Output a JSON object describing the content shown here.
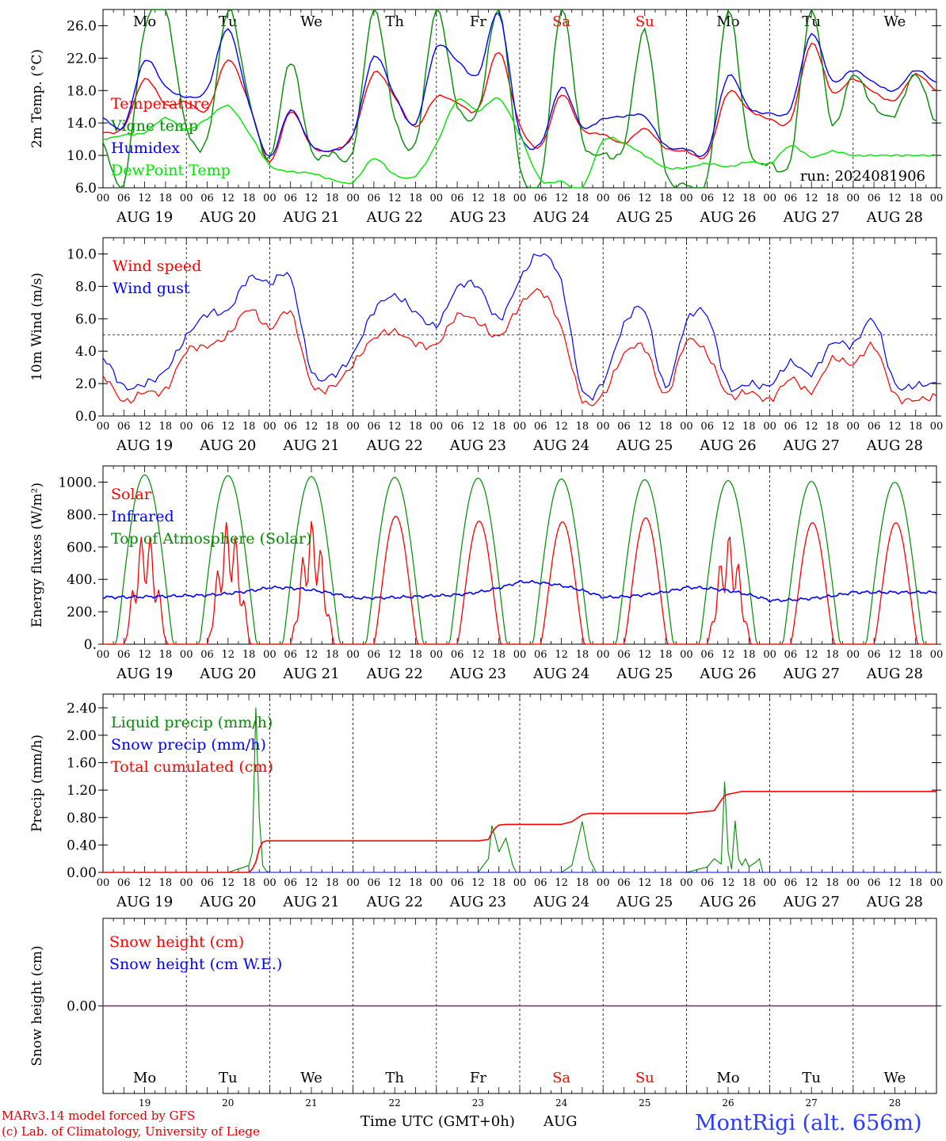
{
  "run_label": "run: 2024081906",
  "footer": {
    "credit_line1": "MARv3.14 model forced by GFS",
    "credit_line2": "(c) Lab. of Climatology, University of Liege",
    "xlabel": "Time UTC (GMT+0h)",
    "month": "AUG",
    "station": "MontRigi (alt. 656m)"
  },
  "colors": {
    "red": "#ff0000",
    "green": "#008c00",
    "blue": "#0000ff",
    "light_green": "#00e600",
    "purple": "#7a1f8f"
  },
  "days": {
    "names": [
      "Mo",
      "Tu",
      "We",
      "Th",
      "Fr",
      "Sa",
      "Su",
      "Mo",
      "Tu",
      "We"
    ],
    "weekend": [
      false,
      false,
      false,
      false,
      false,
      true,
      true,
      false,
      false,
      false
    ],
    "dates": [
      "AUG 19",
      "AUG 20",
      "AUG 21",
      "AUG 22",
      "AUG 23",
      "AUG 24",
      "AUG 25",
      "AUG 26",
      "AUG 27",
      "AUG 28"
    ],
    "numbers": [
      "19",
      "20",
      "21",
      "22",
      "23",
      "24",
      "25",
      "26",
      "27",
      "28"
    ],
    "hour_ticks": [
      "00",
      "06",
      "12",
      "18"
    ],
    "end_tick": "00"
  },
  "chart_data": [
    {
      "type": "line",
      "ylabel": "2m Temp. (°C)",
      "ylim": [
        6,
        28
      ],
      "yticks": [
        "6.0",
        "10.0",
        "14.0",
        "18.0",
        "22.0",
        "26.0"
      ],
      "x_unit": "hours since 00 UTC AUG 19",
      "x": [
        0,
        6,
        12,
        18,
        24,
        30,
        36,
        42,
        48,
        54,
        60,
        66,
        72,
        78,
        84,
        90,
        96,
        102,
        108,
        114,
        120,
        126,
        132,
        138,
        144,
        150,
        156,
        162,
        168,
        174,
        180,
        186,
        192,
        198,
        204,
        210,
        216,
        222,
        228,
        234,
        240
      ],
      "series": [
        {
          "name": "Temperature",
          "color": "red",
          "values": [
            12.8,
            13.5,
            19.4,
            16.3,
            16.6,
            15.6,
            21.8,
            16.5,
            9.2,
            15.4,
            11.2,
            10.6,
            12.6,
            20.2,
            17.2,
            13.5,
            17.2,
            16.5,
            15.7,
            22.8,
            13.8,
            11.1,
            17.5,
            13.2,
            12.6,
            11.5,
            13.3,
            10.9,
            10.5,
            10.1,
            17.8,
            15.6,
            14.5,
            14.4,
            23.8,
            17.8,
            19.4,
            17.8,
            16.8,
            20.0,
            18.0
          ]
        },
        {
          "name": "Vigne temp",
          "color": "green",
          "values": [
            11.3,
            6.5,
            25.6,
            27.9,
            13.5,
            12.0,
            28.0,
            17.0,
            9.6,
            21.6,
            10.5,
            10.3,
            10.6,
            28.0,
            14.6,
            11.5,
            28.0,
            16.2,
            15.5,
            28.0,
            8.8,
            6.5,
            28.0,
            12.0,
            10.2,
            11.2,
            25.4,
            8.0,
            6.5,
            7.0,
            28.0,
            11.0,
            9.0,
            9.5,
            28.0,
            13.8,
            20.0,
            16.0,
            15.0,
            20.0,
            14.0
          ]
        },
        {
          "name": "Humidex",
          "color": "blue",
          "values": [
            14.6,
            13.6,
            21.7,
            18.5,
            17.2,
            18.2,
            25.6,
            16.5,
            9.8,
            15.6,
            11.3,
            10.6,
            12.6,
            22.2,
            17.4,
            13.9,
            23.3,
            21.7,
            20.0,
            27.5,
            12.8,
            11.5,
            18.4,
            13.5,
            14.5,
            14.8,
            14.8,
            11.2,
            10.8,
            10.5,
            19.8,
            15.9,
            15.2,
            15.8,
            25.0,
            19.2,
            20.5,
            19.0,
            18.0,
            20.5,
            19.0
          ]
        },
        {
          "name": "DewPoint Temp",
          "color": "light_green",
          "values": [
            12.0,
            12.5,
            12.8,
            14.6,
            13.2,
            14.5,
            16.1,
            12.8,
            8.8,
            8.0,
            7.8,
            7.0,
            6.7,
            9.6,
            7.6,
            7.5,
            11.4,
            16.8,
            15.5,
            17.0,
            12.5,
            7.0,
            6.8,
            6.0,
            11.8,
            11.5,
            10.0,
            8.5,
            8.5,
            9.0,
            8.6,
            9.2,
            9.0,
            11.2,
            9.8,
            10.5,
            10.0,
            10.0,
            10.0,
            10.0,
            10.0
          ]
        }
      ]
    },
    {
      "type": "line",
      "ylabel": "10m Wind (m/s)",
      "ylim": [
        0,
        11
      ],
      "yticks": [
        "0.0",
        "2.0",
        "4.0",
        "6.0",
        "8.0",
        "10.0"
      ],
      "reference_line": 5.0,
      "x": [
        0,
        6,
        12,
        18,
        24,
        30,
        36,
        42,
        48,
        54,
        60,
        66,
        72,
        78,
        84,
        90,
        96,
        102,
        108,
        114,
        120,
        126,
        132,
        138,
        144,
        150,
        156,
        162,
        168,
        174,
        180,
        186,
        192,
        198,
        204,
        210,
        216,
        222,
        228,
        234,
        240
      ],
      "series": [
        {
          "name": "Wind speed",
          "color": "red",
          "values": [
            2.5,
            0.9,
            1.5,
            1.6,
            4.0,
            4.3,
            5.0,
            6.6,
            5.4,
            6.4,
            2.0,
            1.8,
            3.2,
            4.8,
            5.2,
            4.5,
            4.4,
            6.2,
            5.8,
            4.9,
            6.8,
            7.7,
            5.4,
            1.0,
            1.3,
            3.8,
            4.2,
            1.3,
            4.6,
            3.8,
            1.3,
            1.5,
            1.0,
            2.3,
            1.5,
            3.5,
            3.2,
            4.3,
            1.3,
            1.0,
            1.2
          ]
        },
        {
          "name": "Wind gust",
          "color": "blue",
          "values": [
            3.6,
            1.8,
            2.0,
            2.8,
            4.9,
            6.3,
            6.5,
            8.5,
            8.2,
            8.5,
            2.8,
            2.5,
            3.8,
            6.5,
            7.4,
            6.4,
            5.6,
            7.9,
            8.0,
            6.0,
            8.4,
            10.0,
            8.2,
            1.6,
            2.1,
            5.6,
            6.5,
            1.8,
            5.8,
            6.2,
            1.9,
            2.0,
            1.9,
            3.3,
            2.6,
            4.5,
            4.4,
            5.9,
            2.0,
            1.9,
            2.0
          ]
        }
      ]
    },
    {
      "type": "line",
      "ylabel": "Energy fluxes (W/m²)",
      "ylim": [
        0,
        1100
      ],
      "yticks": [
        "0.",
        "200.",
        "400.",
        "600.",
        "800.",
        "1000."
      ],
      "x_unit": "hours since 00 UTC AUG 19",
      "toa_peak_by_day": [
        1045,
        1040,
        1035,
        1030,
        1025,
        1020,
        1015,
        1010,
        1005,
        1000
      ],
      "solar_peak_by_day": [
        710,
        770,
        765,
        790,
        760,
        755,
        780,
        680,
        750,
        750
      ],
      "infrared_by_day": [
        290,
        300,
        350,
        285,
        300,
        385,
        290,
        350,
        270,
        320
      ],
      "series": [
        {
          "name": "Solar",
          "color": "red"
        },
        {
          "name": "Infrared",
          "color": "blue"
        },
        {
          "name": "Top of Atmosphere (Solar)",
          "color": "green"
        }
      ]
    },
    {
      "type": "line",
      "ylabel": "Precip (mm/h)",
      "ylim": [
        0,
        2.6
      ],
      "yticks": [
        "0.00",
        "0.40",
        "0.80",
        "1.20",
        "1.60",
        "2.00",
        "2.40"
      ],
      "x_unit": "hours since 00 UTC AUG 19",
      "series": [
        {
          "name": "Liquid precip (mm/h)",
          "color": "green",
          "x": [
            0,
            30,
            36,
            39,
            42,
            43,
            44,
            45,
            46,
            47,
            48,
            50,
            54,
            60,
            108,
            111,
            112,
            113,
            114,
            115,
            116,
            117,
            118,
            119,
            120,
            132,
            135,
            138,
            140,
            142,
            144,
            168,
            174,
            176,
            178,
            179,
            180,
            181,
            182,
            183,
            184,
            185,
            186,
            188,
            189,
            190,
            192,
            240
          ],
          "values": [
            0,
            0,
            0,
            0.05,
            0.1,
            0.3,
            2.4,
            0.8,
            0.1,
            0.02,
            0,
            0,
            0,
            0,
            0,
            0.2,
            0.68,
            0.5,
            0.3,
            0.4,
            0.5,
            0.3,
            0.1,
            0,
            0,
            0,
            0.1,
            0.74,
            0.2,
            0,
            0,
            0,
            0.08,
            0.2,
            0.12,
            1.32,
            0.3,
            0.05,
            0.75,
            0.2,
            0.1,
            0.2,
            0.08,
            0.15,
            0.2,
            0,
            0,
            0
          ]
        },
        {
          "name": "Snow precip (mm/h)",
          "color": "blue",
          "x": [
            0,
            240
          ],
          "values": [
            0,
            0
          ]
        },
        {
          "name": "Total cumulated (cm)",
          "color": "red",
          "x": [
            0,
            42,
            43,
            44,
            45,
            46,
            47,
            48,
            60,
            84,
            108,
            111,
            112,
            113,
            114,
            116,
            120,
            132,
            135,
            138,
            140,
            144,
            168,
            176,
            178,
            179,
            180,
            182,
            184,
            186,
            188,
            240
          ],
          "values": [
            0,
            0,
            0.05,
            0.15,
            0.35,
            0.44,
            0.46,
            0.46,
            0.46,
            0.46,
            0.46,
            0.48,
            0.58,
            0.65,
            0.69,
            0.7,
            0.7,
            0.7,
            0.74,
            0.84,
            0.86,
            0.86,
            0.86,
            0.9,
            1.05,
            1.12,
            1.14,
            1.16,
            1.18,
            1.18,
            1.18,
            1.18
          ]
        }
      ]
    },
    {
      "type": "line",
      "ylabel": "Snow height (cm)",
      "ylim": [
        -1,
        1
      ],
      "yticks": [
        "0.00"
      ],
      "x": [
        0,
        240
      ],
      "series": [
        {
          "name": "Snow height (cm)",
          "color": "red",
          "values": [
            0,
            0
          ]
        },
        {
          "name": "Snow height (cm W.E.)",
          "color": "blue",
          "values": [
            0,
            0
          ]
        }
      ]
    }
  ]
}
